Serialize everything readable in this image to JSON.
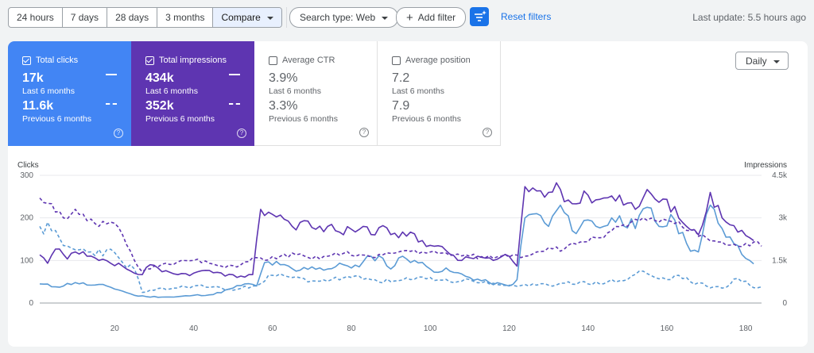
{
  "toolbar": {
    "ranges": [
      "24 hours",
      "7 days",
      "28 days",
      "3 months"
    ],
    "compare_label": "Compare",
    "search_type_label": "Search type: Web",
    "add_filter_label": "Add filter",
    "reset_label": "Reset filters",
    "last_update": "Last update: 5.5 hours ago"
  },
  "cards": {
    "clicks": {
      "title": "Total clicks",
      "current": "17k",
      "current_label": "Last 6 months",
      "previous": "11.6k",
      "previous_label": "Previous 6 months",
      "checked": true
    },
    "impressions": {
      "title": "Total impressions",
      "current": "434k",
      "current_label": "Last 6 months",
      "previous": "352k",
      "previous_label": "Previous 6 months",
      "checked": true
    },
    "ctr": {
      "title": "Average CTR",
      "current": "3.9%",
      "current_label": "Last 6 months",
      "previous": "3.3%",
      "previous_label": "Previous 6 months",
      "checked": false
    },
    "position": {
      "title": "Average position",
      "current": "7.2",
      "current_label": "Last 6 months",
      "previous": "7.9",
      "previous_label": "Previous 6 months",
      "checked": false
    }
  },
  "granularity": "Daily",
  "colors": {
    "clicks": "#4285f4",
    "clicks_line": "#5b9bd5",
    "impressions": "#5e35b1",
    "accent": "#1a73e8"
  },
  "chart_data": {
    "type": "line",
    "xlabel": "",
    "ylabel": "Clicks",
    "y2label": "Impressions",
    "xlim": [
      1,
      184
    ],
    "ylim": [
      0,
      300
    ],
    "y2lim": [
      0,
      4500
    ],
    "x_ticks": [
      20,
      40,
      60,
      80,
      100,
      120,
      140,
      160,
      180
    ],
    "y_ticks": [
      0,
      100,
      200,
      300
    ],
    "y2_ticks": [
      {
        "value": 0,
        "label": "0"
      },
      {
        "value": 1500,
        "label": "1.5k"
      },
      {
        "value": 3000,
        "label": "3k"
      },
      {
        "value": 4500,
        "label": "4.5k"
      }
    ],
    "grid": true,
    "series": [
      {
        "name": "Total clicks",
        "axis": "left",
        "style": "solid",
        "keypoints": [
          [
            1,
            45
          ],
          [
            5,
            38
          ],
          [
            10,
            48
          ],
          [
            14,
            42
          ],
          [
            18,
            40
          ],
          [
            22,
            28
          ],
          [
            25,
            18
          ],
          [
            28,
            15
          ],
          [
            35,
            14
          ],
          [
            40,
            18
          ],
          [
            45,
            20
          ],
          [
            50,
            35
          ],
          [
            53,
            45
          ],
          [
            56,
            40
          ],
          [
            58,
            95
          ],
          [
            62,
            90
          ],
          [
            66,
            75
          ],
          [
            70,
            85
          ],
          [
            74,
            80
          ],
          [
            78,
            90
          ],
          [
            82,
            85
          ],
          [
            85,
            110
          ],
          [
            88,
            105
          ],
          [
            90,
            80
          ],
          [
            93,
            110
          ],
          [
            96,
            100
          ],
          [
            100,
            80
          ],
          [
            105,
            75
          ],
          [
            110,
            60
          ],
          [
            115,
            48
          ],
          [
            120,
            40
          ],
          [
            122,
            55
          ],
          [
            124,
            200
          ],
          [
            127,
            210
          ],
          [
            130,
            180
          ],
          [
            133,
            230
          ],
          [
            136,
            170
          ],
          [
            140,
            195
          ],
          [
            144,
            180
          ],
          [
            148,
            205
          ],
          [
            152,
            175
          ],
          [
            155,
            225
          ],
          [
            158,
            180
          ],
          [
            162,
            195
          ],
          [
            165,
            140
          ],
          [
            168,
            120
          ],
          [
            171,
            230
          ],
          [
            174,
            175
          ],
          [
            178,
            135
          ],
          [
            181,
            100
          ],
          [
            182,
            92
          ]
        ]
      },
      {
        "name": "Previous clicks",
        "axis": "left",
        "style": "dashed",
        "keypoints": [
          [
            1,
            180
          ],
          [
            4,
            170
          ],
          [
            7,
            135
          ],
          [
            10,
            125
          ],
          [
            14,
            120
          ],
          [
            18,
            125
          ],
          [
            22,
            95
          ],
          [
            25,
            80
          ],
          [
            27,
            25
          ],
          [
            30,
            30
          ],
          [
            35,
            35
          ],
          [
            40,
            40
          ],
          [
            45,
            38
          ],
          [
            50,
            30
          ],
          [
            55,
            40
          ],
          [
            60,
            65
          ],
          [
            65,
            60
          ],
          [
            70,
            52
          ],
          [
            75,
            55
          ],
          [
            80,
            60
          ],
          [
            85,
            55
          ],
          [
            90,
            50
          ],
          [
            95,
            55
          ],
          [
            100,
            60
          ],
          [
            105,
            50
          ],
          [
            110,
            55
          ],
          [
            115,
            45
          ],
          [
            120,
            42
          ],
          [
            125,
            40
          ],
          [
            130,
            42
          ],
          [
            135,
            50
          ],
          [
            140,
            45
          ],
          [
            145,
            50
          ],
          [
            150,
            55
          ],
          [
            153,
            75
          ],
          [
            157,
            60
          ],
          [
            160,
            55
          ],
          [
            163,
            65
          ],
          [
            166,
            50
          ],
          [
            170,
            40
          ],
          [
            174,
            35
          ],
          [
            178,
            58
          ],
          [
            182,
            36
          ],
          [
            184,
            38
          ]
        ]
      },
      {
        "name": "Total impressions",
        "axis": "right",
        "style": "solid",
        "keypoints": [
          [
            1,
            1700
          ],
          [
            3,
            1400
          ],
          [
            5,
            1900
          ],
          [
            8,
            1550
          ],
          [
            10,
            1800
          ],
          [
            13,
            1650
          ],
          [
            16,
            1500
          ],
          [
            19,
            1400
          ],
          [
            22,
            1300
          ],
          [
            25,
            1050
          ],
          [
            27,
            1000
          ],
          [
            29,
            1350
          ],
          [
            32,
            1100
          ],
          [
            36,
            1000
          ],
          [
            40,
            1050
          ],
          [
            44,
            1150
          ],
          [
            48,
            950
          ],
          [
            52,
            950
          ],
          [
            55,
            1000
          ],
          [
            57,
            3300
          ],
          [
            59,
            3200
          ],
          [
            62,
            3100
          ],
          [
            65,
            2700
          ],
          [
            68,
            2900
          ],
          [
            71,
            2600
          ],
          [
            74,
            2700
          ],
          [
            77,
            2500
          ],
          [
            80,
            2600
          ],
          [
            83,
            2700
          ],
          [
            86,
            2400
          ],
          [
            89,
            2650
          ],
          [
            92,
            2300
          ],
          [
            95,
            2500
          ],
          [
            98,
            2200
          ],
          [
            101,
            2000
          ],
          [
            104,
            1850
          ],
          [
            108,
            1500
          ],
          [
            112,
            1650
          ],
          [
            116,
            1500
          ],
          [
            120,
            1650
          ],
          [
            122,
            1300
          ],
          [
            124,
            4100
          ],
          [
            127,
            3950
          ],
          [
            130,
            3900
          ],
          [
            133,
            4000
          ],
          [
            136,
            3500
          ],
          [
            140,
            3800
          ],
          [
            144,
            3700
          ],
          [
            148,
            3800
          ],
          [
            152,
            3300
          ],
          [
            155,
            4000
          ],
          [
            158,
            3550
          ],
          [
            162,
            3400
          ],
          [
            165,
            2700
          ],
          [
            168,
            2400
          ],
          [
            171,
            3900
          ],
          [
            174,
            3000
          ],
          [
            178,
            2500
          ],
          [
            181,
            2300
          ],
          [
            182,
            2200
          ]
        ]
      },
      {
        "name": "Previous impressions",
        "axis": "right",
        "style": "dashed",
        "keypoints": [
          [
            1,
            3700
          ],
          [
            4,
            3500
          ],
          [
            7,
            3000
          ],
          [
            10,
            3300
          ],
          [
            13,
            2900
          ],
          [
            16,
            2700
          ],
          [
            19,
            2850
          ],
          [
            22,
            2400
          ],
          [
            25,
            1500
          ],
          [
            27,
            1100
          ],
          [
            30,
            1300
          ],
          [
            33,
            1400
          ],
          [
            36,
            1450
          ],
          [
            40,
            1500
          ],
          [
            44,
            1400
          ],
          [
            48,
            1250
          ],
          [
            52,
            1350
          ],
          [
            55,
            1600
          ],
          [
            58,
            1500
          ],
          [
            62,
            1650
          ],
          [
            66,
            1700
          ],
          [
            70,
            1550
          ],
          [
            74,
            1650
          ],
          [
            78,
            1750
          ],
          [
            82,
            1700
          ],
          [
            86,
            1600
          ],
          [
            90,
            1750
          ],
          [
            94,
            1850
          ],
          [
            98,
            1800
          ],
          [
            102,
            1750
          ],
          [
            106,
            1700
          ],
          [
            110,
            1650
          ],
          [
            114,
            1600
          ],
          [
            118,
            1650
          ],
          [
            121,
            1700
          ],
          [
            124,
            1650
          ],
          [
            127,
            1800
          ],
          [
            130,
            1950
          ],
          [
            134,
            1900
          ],
          [
            138,
            2150
          ],
          [
            142,
            2300
          ],
          [
            146,
            2550
          ],
          [
            150,
            2700
          ],
          [
            154,
            3000
          ],
          [
            158,
            2850
          ],
          [
            162,
            2800
          ],
          [
            166,
            2550
          ],
          [
            170,
            2300
          ],
          [
            174,
            2150
          ],
          [
            178,
            2000
          ],
          [
            182,
            2150
          ],
          [
            184,
            2000
          ]
        ]
      }
    ]
  }
}
